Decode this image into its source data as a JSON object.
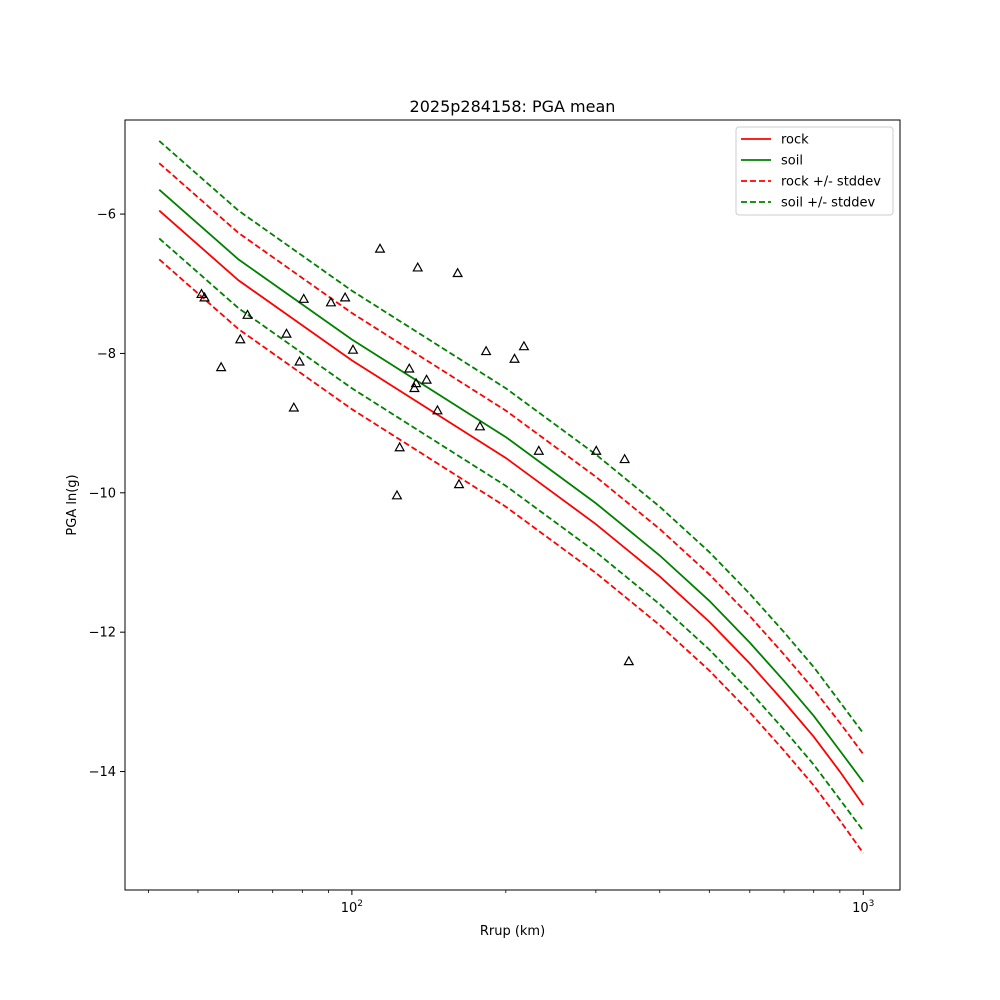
{
  "chart_data": {
    "type": "line",
    "title": "2025p284158: PGA mean",
    "xlabel": "Rrup (km)",
    "ylabel": "PGA ln(g)",
    "xscale": "log",
    "xlim": [
      36,
      1180
    ],
    "ylim": [
      -15.7,
      -4.65
    ],
    "x_ticks": [
      {
        "value": 100,
        "label": "10",
        "exp": "2"
      },
      {
        "value": 1000,
        "label": "10",
        "exp": "3"
      }
    ],
    "y_ticks": [
      {
        "value": -14,
        "label": "−14"
      },
      {
        "value": -12,
        "label": "−12"
      },
      {
        "value": -10,
        "label": "−10"
      },
      {
        "value": -8,
        "label": "−8"
      },
      {
        "value": -6,
        "label": "−6"
      }
    ],
    "grid": false,
    "legend_position": "upper right",
    "legend": [
      {
        "label": "rock",
        "color": "#ff0000",
        "style": "solid"
      },
      {
        "label": "soil",
        "color": "#008000",
        "style": "solid"
      },
      {
        "label": "rock +/- stddev",
        "color": "#ff0000",
        "style": "dashed"
      },
      {
        "label": "soil +/- stddev",
        "color": "#008000",
        "style": "dashed"
      }
    ],
    "x": [
      42,
      60,
      100,
      200,
      300,
      400,
      500,
      600,
      700,
      800,
      900,
      1000
    ],
    "series": [
      {
        "name": "rock",
        "color": "#ff0000",
        "style": "solid",
        "values": [
          -5.95,
          -6.95,
          -8.1,
          -9.5,
          -10.45,
          -11.2,
          -11.85,
          -12.45,
          -13.0,
          -13.5,
          -14.0,
          -14.48
        ]
      },
      {
        "name": "soil",
        "color": "#008000",
        "style": "solid",
        "values": [
          -5.65,
          -6.65,
          -7.8,
          -9.2,
          -10.15,
          -10.9,
          -11.55,
          -12.15,
          -12.7,
          -13.2,
          -13.7,
          -14.15
        ]
      },
      {
        "name": "rock +/- stddev",
        "color": "#ff0000",
        "style": "dashed",
        "values": [
          -5.27,
          -6.27,
          -7.42,
          -8.82,
          -9.77,
          -10.52,
          -11.17,
          -11.77,
          -12.32,
          -12.82,
          -13.3,
          -13.75
        ]
      },
      {
        "name": "rock +/- stddev",
        "color": "#ff0000",
        "style": "dashed",
        "values": [
          -6.65,
          -7.65,
          -8.8,
          -10.2,
          -11.15,
          -11.9,
          -12.55,
          -13.15,
          -13.7,
          -14.2,
          -14.7,
          -15.17
        ]
      },
      {
        "name": "soil +/- stddev",
        "color": "#008000",
        "style": "dashed",
        "values": [
          -4.95,
          -5.95,
          -7.1,
          -8.5,
          -9.45,
          -10.2,
          -10.85,
          -11.45,
          -12.0,
          -12.5,
          -13.0,
          -13.45
        ]
      },
      {
        "name": "soil +/- stddev",
        "color": "#008000",
        "style": "dashed",
        "values": [
          -6.35,
          -7.35,
          -8.5,
          -9.9,
          -10.85,
          -11.6,
          -12.25,
          -12.85,
          -13.4,
          -13.9,
          -14.4,
          -14.85
        ]
      }
    ],
    "observations": {
      "marker": "triangle",
      "color": "#000000",
      "points": [
        [
          50.8,
          -7.15
        ],
        [
          51.5,
          -7.2
        ],
        [
          55.5,
          -8.2
        ],
        [
          60.5,
          -7.8
        ],
        [
          62.5,
          -7.45
        ],
        [
          74.5,
          -7.72
        ],
        [
          77.0,
          -8.78
        ],
        [
          79.0,
          -8.12
        ],
        [
          80.5,
          -7.22
        ],
        [
          91.0,
          -7.27
        ],
        [
          97.0,
          -7.2
        ],
        [
          100.5,
          -7.95
        ],
        [
          113.5,
          -6.5
        ],
        [
          122.5,
          -10.04
        ],
        [
          124.0,
          -9.35
        ],
        [
          129.5,
          -8.22
        ],
        [
          132.5,
          -8.5
        ],
        [
          133.5,
          -8.43
        ],
        [
          134.5,
          -6.77
        ],
        [
          140.0,
          -8.38
        ],
        [
          147.0,
          -8.82
        ],
        [
          161.0,
          -6.85
        ],
        [
          162.0,
          -9.88
        ],
        [
          178.0,
          -9.05
        ],
        [
          183.0,
          -7.97
        ],
        [
          208.0,
          -8.08
        ],
        [
          217.0,
          -7.9
        ],
        [
          232.0,
          -9.4
        ],
        [
          300.5,
          -9.4
        ],
        [
          341.5,
          -9.52
        ],
        [
          348.0,
          -12.42
        ]
      ]
    }
  }
}
